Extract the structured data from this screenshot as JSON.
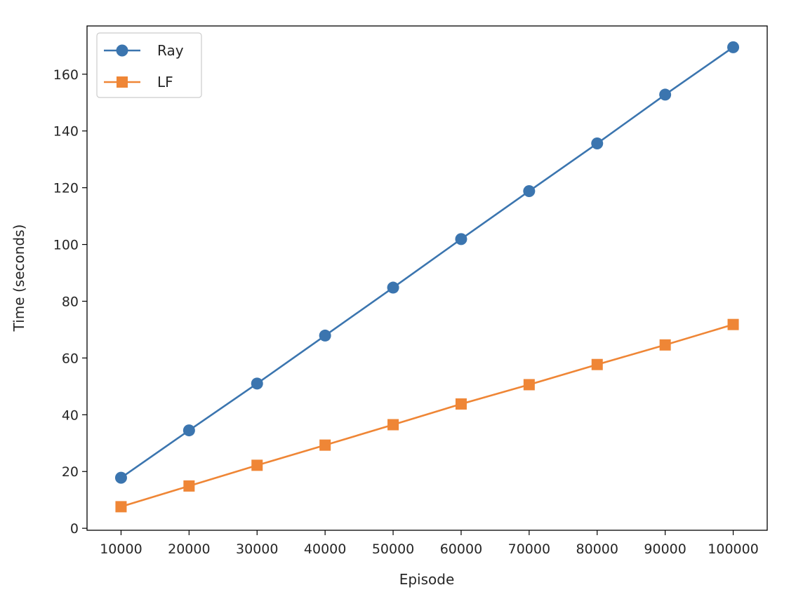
{
  "chart_data": {
    "type": "line",
    "xlabel": "Episode",
    "ylabel": "Time (seconds)",
    "x": [
      10000,
      20000,
      30000,
      40000,
      50000,
      60000,
      70000,
      80000,
      90000,
      100000
    ],
    "xticks": [
      10000,
      20000,
      30000,
      40000,
      50000,
      60000,
      70000,
      80000,
      90000,
      100000
    ],
    "yticks": [
      0,
      20,
      40,
      60,
      80,
      100,
      120,
      140,
      160
    ],
    "xlim": [
      5000,
      105000
    ],
    "ylim": [
      -0.7,
      177
    ],
    "grid": false,
    "legend_position": "top-left",
    "series": [
      {
        "name": "Ray",
        "color": "#3b75af",
        "marker": "circle",
        "values": [
          17.8,
          34.5,
          51.0,
          67.9,
          84.8,
          101.9,
          118.8,
          135.6,
          152.8,
          169.5
        ]
      },
      {
        "name": "LF",
        "color": "#ef8636",
        "marker": "square",
        "values": [
          7.6,
          14.9,
          22.2,
          29.3,
          36.5,
          43.8,
          50.6,
          57.7,
          64.6,
          71.8
        ]
      }
    ]
  }
}
